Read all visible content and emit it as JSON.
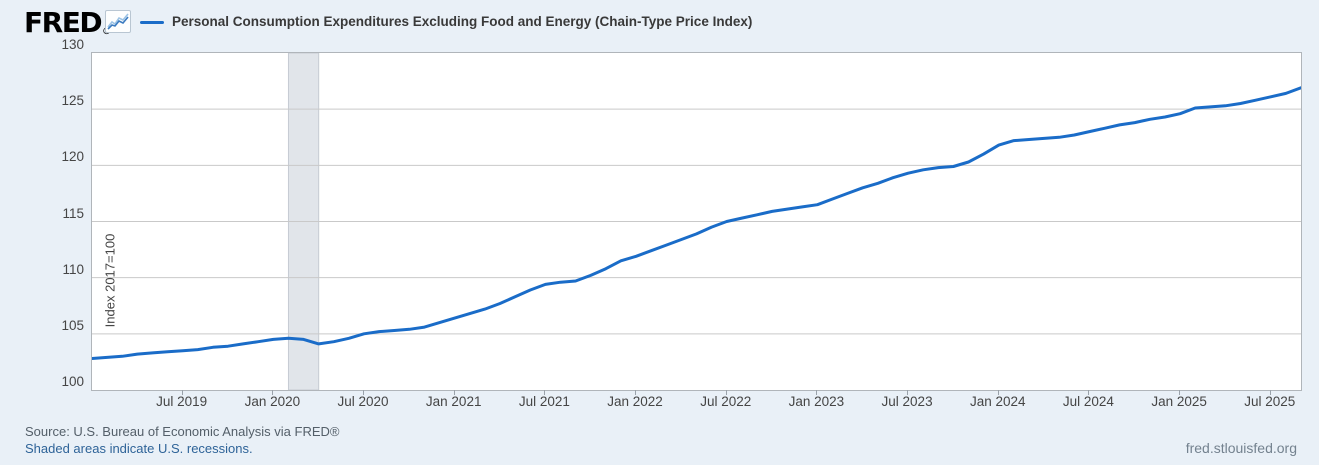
{
  "header": {
    "logo_text": "FRED",
    "logo_registered": "®",
    "legend_label": "Personal Consumption Expenditures Excluding Food and Energy (Chain-Type Price Index)"
  },
  "colors": {
    "background": "#e9f0f7",
    "plot_background": "#ffffff",
    "line": "#1a6cc8",
    "grid": "#c9c9c9",
    "plot_border": "#b0b5ba",
    "recession_fill": "#e1e5ea",
    "recession_edge": "#c6ccd3",
    "link": "#2e6398"
  },
  "chart_data": {
    "type": "line",
    "title": "Personal Consumption Expenditures Excluding Food and Energy (Chain-Type Price Index)",
    "ylabel": "Index 2017=100",
    "xlabel": "",
    "ylim": [
      100,
      130
    ],
    "yticks": [
      100,
      105,
      110,
      115,
      120,
      125,
      130
    ],
    "xticks": [
      "Jul 2019",
      "Jan 2020",
      "Jul 2020",
      "Jan 2021",
      "Jul 2021",
      "Jan 2022",
      "Jul 2022",
      "Jan 2023",
      "Jul 2023",
      "Jan 2024",
      "Jul 2024",
      "Jan 2025",
      "Jul 2025"
    ],
    "grid": "horizontal",
    "legend_position": "top",
    "x_start": "2019-01",
    "x_end": "2025-09",
    "frequency": "monthly",
    "recessions": [
      {
        "start": "2020-02",
        "end": "2020-04"
      }
    ],
    "series": [
      {
        "name": "Personal Consumption Expenditures Excluding Food and Energy (Chain-Type Price Index)",
        "values": [
          102.8,
          102.9,
          103.0,
          103.2,
          103.3,
          103.4,
          103.5,
          103.6,
          103.8,
          103.9,
          104.1,
          104.3,
          104.5,
          104.6,
          104.5,
          104.1,
          104.3,
          104.6,
          105.0,
          105.2,
          105.3,
          105.4,
          105.6,
          106.0,
          106.4,
          106.8,
          107.2,
          107.7,
          108.3,
          108.9,
          109.4,
          109.6,
          109.7,
          110.2,
          110.8,
          111.5,
          111.9,
          112.4,
          112.9,
          113.4,
          113.9,
          114.5,
          115.0,
          115.3,
          115.6,
          115.9,
          116.1,
          116.3,
          116.5,
          117.0,
          117.5,
          118.0,
          118.4,
          118.9,
          119.3,
          119.6,
          119.8,
          119.9,
          120.3,
          121.0,
          121.8,
          122.2,
          122.3,
          122.4,
          122.5,
          122.7,
          123.0,
          123.3,
          123.6,
          123.8,
          124.1,
          124.3,
          124.6,
          125.1,
          125.2,
          125.3,
          125.5,
          125.8,
          126.1,
          126.4,
          126.9
        ]
      }
    ]
  },
  "footer": {
    "source": "Source: U.S. Bureau of Economic Analysis via FRED®",
    "recession_note": "Shaded areas indicate U.S. recessions.",
    "site": "fred.stlouisfed.org"
  }
}
